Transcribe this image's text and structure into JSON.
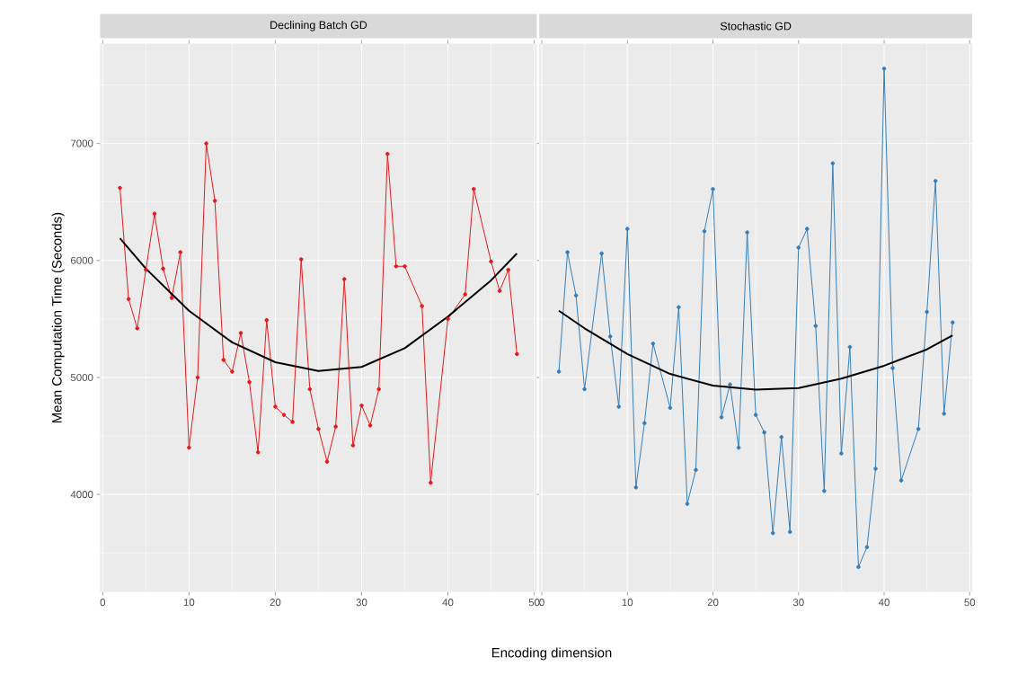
{
  "chart_data": [
    {
      "type": "line",
      "title": "Declining Batch GD",
      "xlabel": "Encoding dimension",
      "ylabel": "Mean Computation Time (Seconds)",
      "xlim": [
        -0.3,
        50.3
      ],
      "xticks": [
        0,
        10,
        20,
        30,
        40,
        50
      ],
      "ylim": [
        3167,
        7853
      ],
      "yticks": [
        4000,
        5000,
        6000,
        7000
      ],
      "grid": true,
      "series": [
        {
          "color": "#e41a1c",
          "marker": "circle",
          "x": [
            2,
            3,
            4,
            5,
            6,
            7,
            8,
            9,
            10,
            11,
            12,
            13,
            14,
            15,
            16,
            17,
            18,
            19,
            20,
            21,
            22,
            23,
            24,
            25,
            26,
            27,
            28,
            29,
            30,
            31,
            32,
            33,
            34,
            35,
            37,
            38,
            40,
            42,
            43,
            45,
            46,
            47,
            48
          ],
          "values": [
            6620,
            5670,
            5420,
            5920,
            6400,
            5930,
            5680,
            6070,
            4400,
            5000,
            7000,
            6510,
            5150,
            5050,
            5380,
            4960,
            4360,
            5490,
            4750,
            4680,
            4620,
            6010,
            4900,
            4560,
            4280,
            4580,
            5840,
            4420,
            4760,
            4590,
            4900,
            6910,
            5950,
            5950,
            5610,
            4100,
            5500,
            5710,
            6610,
            5990,
            5740,
            5920,
            5200
          ]
        },
        {
          "color": "#000000",
          "marker": "none",
          "x": [
            2,
            5,
            10,
            15,
            20,
            25,
            30,
            35,
            40,
            45,
            48
          ],
          "values": [
            6190,
            5930,
            5570,
            5300,
            5130,
            5055,
            5090,
            5250,
            5520,
            5830,
            6060
          ]
        }
      ]
    },
    {
      "type": "line",
      "title": "Stochastic GD",
      "tick_labels": "x",
      "xlim": [
        -0.3,
        50.3
      ],
      "xticks": [
        0,
        10,
        20,
        30,
        40,
        50
      ],
      "ylim": [
        3167,
        7853
      ],
      "yticks": [
        4000,
        5000,
        6000,
        7000
      ],
      "grid": true,
      "series": [
        {
          "color": "#377eb8",
          "marker": "circle",
          "x": [
            2,
            3,
            4,
            5,
            7,
            8,
            9,
            10,
            11,
            12,
            13,
            15,
            16,
            17,
            18,
            19,
            20,
            21,
            22,
            23,
            24,
            25,
            26,
            27,
            28,
            29,
            30,
            31,
            32,
            33,
            34,
            35,
            36,
            37,
            38,
            39,
            40,
            41,
            42,
            44,
            45,
            46,
            47,
            48
          ],
          "values": [
            5050,
            6070,
            5700,
            4900,
            6060,
            5350,
            4750,
            6270,
            4060,
            4610,
            5290,
            4740,
            5600,
            3920,
            4210,
            6250,
            6610,
            4660,
            4940,
            4400,
            6240,
            4680,
            4530,
            3670,
            4490,
            3680,
            6110,
            6270,
            5440,
            4030,
            6830,
            4350,
            5260,
            3380,
            3550,
            4220,
            7640,
            5080,
            4120,
            4560,
            5560,
            6680,
            4690,
            5470
          ]
        },
        {
          "color": "#000000",
          "marker": "none",
          "x": [
            2,
            5,
            10,
            15,
            20,
            25,
            30,
            35,
            40,
            45,
            48
          ],
          "values": [
            5570,
            5420,
            5200,
            5030,
            4930,
            4895,
            4910,
            4990,
            5100,
            5240,
            5360
          ]
        }
      ]
    }
  ]
}
